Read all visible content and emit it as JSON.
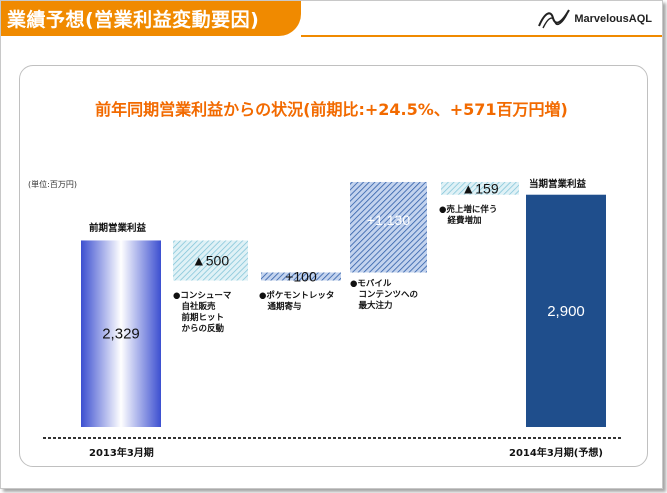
{
  "header": {
    "title": "業績予想(営業利益変動要因)"
  },
  "logo": {
    "text": "MarvelousAQL"
  },
  "chart_data": {
    "type": "bar",
    "title": "前年同期営業利益からの状況(前期比:+24.5%、+571百万円増)",
    "unit_label": "(単位:百万円)",
    "start": {
      "category": "前期営業利益",
      "value": 2329,
      "value_label": "2,329",
      "axis_label": "2013年3月期",
      "color": "#3c4fd0"
    },
    "end": {
      "category": "当期営業利益",
      "value": 2900,
      "value_label": "2,900",
      "axis_label": "2014年3月期(予想)",
      "color": "#1f4e8c"
    },
    "steps": [
      {
        "delta": -500,
        "value_label": "▲500",
        "note": "●コンシューマ\n　自社販売\n　前期ヒット\n　からの反動"
      },
      {
        "delta": 100,
        "value_label": "+100",
        "note": "●ポケモントレッタ\n　通期寄与"
      },
      {
        "delta": 1130,
        "value_label": "+1,130",
        "note": "●モバイル\n　コンテンツへの\n　最大注力"
      },
      {
        "delta": -159,
        "value_label": "▲159",
        "note": "●売上増に伴う\n　経費増加"
      }
    ]
  }
}
